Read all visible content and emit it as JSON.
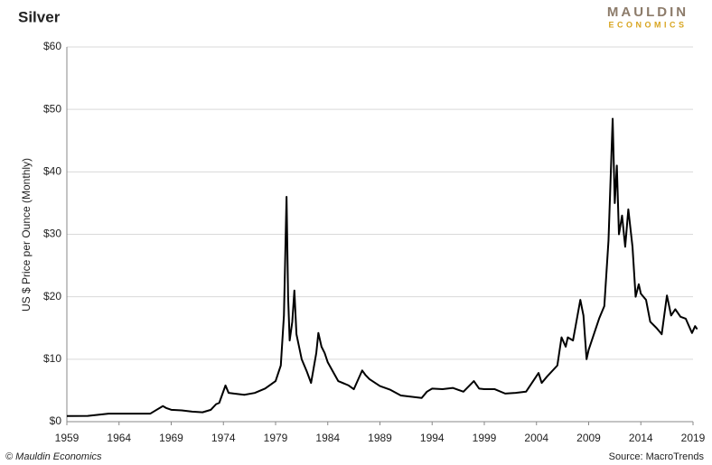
{
  "chart_data": {
    "type": "line",
    "title": "Silver",
    "ylabel": "US $ Price  per Ounce (Monthly)",
    "credit": "© Mauldin Economics",
    "source": "Source: MacroTrends",
    "logo": [
      "MAULDIN",
      "ECONOMICS"
    ],
    "color": "#000000",
    "grid": true,
    "xlim": [
      1959,
      2019
    ],
    "xticks": [
      1959,
      1964,
      1969,
      1974,
      1979,
      1984,
      1989,
      1994,
      1999,
      2004,
      2009,
      2014,
      2019
    ],
    "ylim": [
      0,
      60
    ],
    "yticks": [
      {
        "value": 0,
        "label": "$0"
      },
      {
        "value": 10,
        "label": "$10"
      },
      {
        "value": 20,
        "label": "$20"
      },
      {
        "value": 30,
        "label": "$30"
      },
      {
        "value": 40,
        "label": "$40"
      },
      {
        "value": 50,
        "label": "$50"
      },
      {
        "value": 60,
        "label": "$60"
      }
    ],
    "x": [
      1959,
      1961,
      1962,
      1963,
      1964,
      1967,
      1967.5,
      1968.2,
      1968.5,
      1969,
      1970,
      1971,
      1972,
      1972.8,
      1973.3,
      1973.6,
      1974.2,
      1974.5,
      1975,
      1976,
      1977,
      1978,
      1979,
      1979.5,
      1979.8,
      1980.05,
      1980.2,
      1980.35,
      1980.6,
      1980.8,
      1981,
      1981.5,
      1982,
      1982.4,
      1982.9,
      1983.1,
      1983.4,
      1983.7,
      1984,
      1984.5,
      1985,
      1986,
      1986.5,
      1987.3,
      1987.6,
      1988,
      1989,
      1990,
      1991,
      1992,
      1993,
      1993.5,
      1994,
      1995,
      1996,
      1997,
      1998,
      1998.5,
      1999,
      2000,
      2001,
      2002,
      2003,
      2004.2,
      2004.5,
      2005,
      2006,
      2006.4,
      2006.8,
      2007,
      2007.5,
      2008.2,
      2008.5,
      2008.8,
      2009,
      2009.5,
      2010,
      2010.5,
      2010.9,
      2011.3,
      2011.5,
      2011.7,
      2011.9,
      2012.2,
      2012.5,
      2012.8,
      2013.2,
      2013.5,
      2013.8,
      2014,
      2014.5,
      2014.9,
      2015.5,
      2016,
      2016.5,
      2016.9,
      2017.3,
      2017.8,
      2018.3,
      2018.9,
      2019.2,
      2019.4
    ],
    "values": [
      0.9,
      0.92,
      1.1,
      1.28,
      1.29,
      1.29,
      1.8,
      2.5,
      2.2,
      1.9,
      1.8,
      1.6,
      1.5,
      1.9,
      2.8,
      3.0,
      5.8,
      4.6,
      4.5,
      4.3,
      4.6,
      5.3,
      6.5,
      9,
      17,
      36,
      20,
      13,
      16,
      21,
      14,
      10,
      8,
      6.2,
      11,
      14.2,
      12,
      11,
      9.5,
      8,
      6.5,
      5.8,
      5.2,
      8.2,
      7.5,
      6.8,
      5.7,
      5.1,
      4.2,
      4.0,
      3.8,
      4.8,
      5.3,
      5.2,
      5.4,
      4.8,
      6.5,
      5.3,
      5.2,
      5.2,
      4.5,
      4.6,
      4.8,
      7.8,
      6.2,
      7.2,
      9,
      13.5,
      12,
      13.5,
      13,
      19.5,
      17,
      10,
      11.5,
      14,
      16.5,
      18.5,
      29,
      48.5,
      35,
      41,
      30,
      33,
      28,
      34,
      28,
      20,
      22,
      20.5,
      19.5,
      16,
      15,
      14,
      20.2,
      17,
      18,
      16.8,
      16.5,
      14.2,
      15.3,
      14.8
    ]
  }
}
